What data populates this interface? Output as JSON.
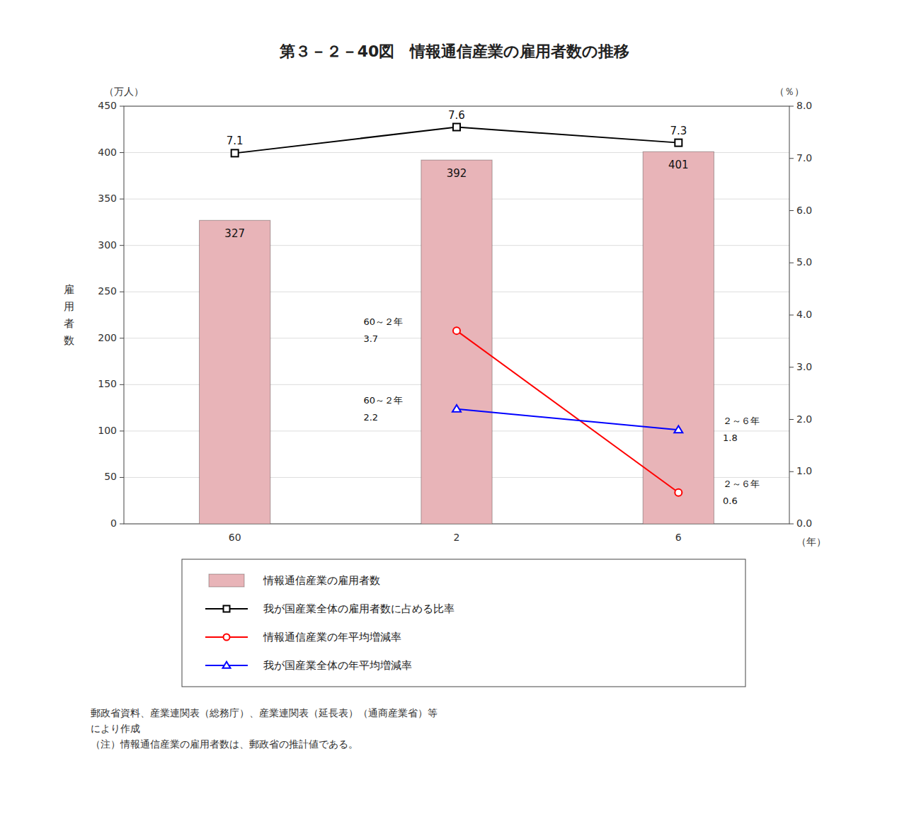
{
  "chart_data": {
    "type": "bar",
    "title": "第３－２－40図　情報通信産業の雇用者数の推移",
    "categories": [
      "60",
      "2",
      "6"
    ],
    "xlabel": "（年）",
    "ylabel": "雇用者数",
    "yunit": "（万人）",
    "y2unit": "（％）",
    "ylim": [
      0,
      450
    ],
    "yticks": [
      0,
      50,
      100,
      150,
      200,
      250,
      300,
      350,
      400,
      450
    ],
    "y2lim": [
      0,
      8.0
    ],
    "y2ticks": [
      {
        "value": 0,
        "label": "0.0"
      },
      {
        "value": 1.0,
        "label": "1.0"
      },
      {
        "value": 2.0,
        "label": "2.0"
      },
      {
        "value": 3.0,
        "label": "3.0"
      },
      {
        "value": 4.0,
        "label": "4.0"
      },
      {
        "value": 5.0,
        "label": "5.0"
      },
      {
        "value": 6.0,
        "label": "6.0"
      },
      {
        "value": 7.0,
        "label": "7.0"
      },
      {
        "value": 8.0,
        "label": "8.0"
      }
    ],
    "grid": true,
    "legend": "bottom",
    "data_labels": true,
    "period_labels": [
      "60～２年",
      "２～６年"
    ],
    "source": "郵政省資料、産業連関表（総務庁）、産業連関表（延長表）（通商産業省）等\nにより作成\n（注）情報通信産業の雇用者数は、郵政省の推計値である。",
    "series": [
      {
        "name": "情報通信産業の雇用者数",
        "type": "bar",
        "color": "#e8b4b8",
        "values": [
          327,
          392,
          401
        ]
      },
      {
        "name": "我が国産業全体の雇用者数に占める比率",
        "type": "line",
        "axis": "y2",
        "color": "black",
        "marker": "square",
        "values": [
          7.1,
          7.6,
          7.3
        ]
      },
      {
        "name": "情報通信産業の年平均増減率",
        "type": "line",
        "axis": "y2",
        "color": "red",
        "marker": "circle",
        "values": [
          null,
          3.7,
          0.6
        ]
      },
      {
        "name": "我が国産業全体の年平均増減率",
        "type": "line",
        "axis": "y2",
        "color": "blue",
        "marker": "triangle",
        "values": [
          null,
          2.2,
          1.8
        ]
      }
    ]
  }
}
